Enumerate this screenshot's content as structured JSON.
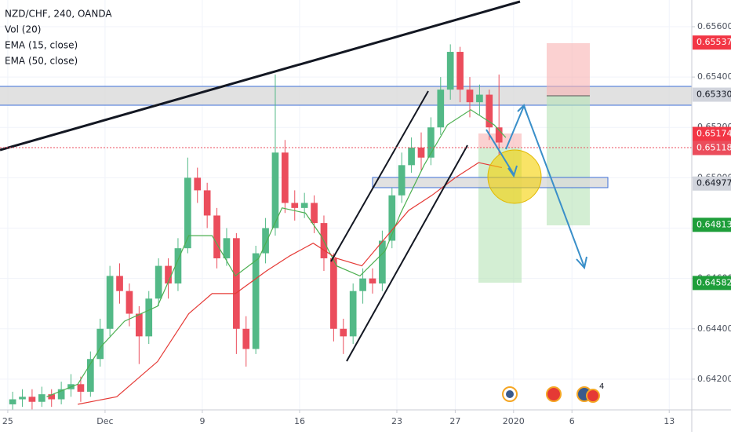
{
  "chart_data": {
    "type": "candlestick",
    "title": "NZD/CHF, 240, OANDA",
    "volume_label": "Vol (20)",
    "up_color": "#53b987",
    "down_color": "#eb4d5c",
    "xlim": [
      -0.4,
      35.16
    ],
    "ylim": [
      0.64078,
      0.65706
    ],
    "grid": true,
    "xticks": [
      {
        "value": 0,
        "label": "25"
      },
      {
        "value": 5,
        "label": "Dec"
      },
      {
        "value": 10,
        "label": "9"
      },
      {
        "value": 15,
        "label": "16"
      },
      {
        "value": 20,
        "label": "23"
      },
      {
        "value": 23,
        "label": "27"
      },
      {
        "value": 26,
        "label": "2020"
      },
      {
        "value": 29,
        "label": "6"
      },
      {
        "value": 34,
        "label": "13"
      }
    ],
    "yticks": [
      {
        "value": 0.642,
        "label": "0.64200"
      },
      {
        "value": 0.644,
        "label": "0.64400"
      },
      {
        "value": 0.646,
        "label": "0.64600"
      },
      {
        "value": 0.648,
        "label": "0.64800"
      },
      {
        "value": 0.65,
        "label": "0.65000"
      },
      {
        "value": 0.652,
        "label": "0.65200"
      },
      {
        "value": 0.654,
        "label": "0.65400"
      },
      {
        "value": 0.656,
        "label": "0.65600"
      }
    ],
    "x": [
      0.25,
      0.75,
      1.25,
      1.75,
      2.25,
      2.75,
      3.25,
      3.75,
      4.25,
      4.75,
      5.25,
      5.75,
      6.25,
      6.75,
      7.25,
      7.75,
      8.25,
      8.75,
      9.25,
      9.75,
      10.25,
      10.75,
      11.25,
      11.75,
      12.25,
      12.75,
      13.25,
      13.75,
      14.25,
      14.75,
      15.25,
      15.75,
      16.25,
      16.75,
      17.25,
      17.75,
      18.25,
      18.75,
      19.25,
      19.75,
      20.25,
      20.75,
      21.25,
      21.75,
      22.25,
      22.75,
      23.25,
      23.75,
      24.25,
      24.75,
      25.25
    ],
    "open": [
      0.641,
      0.6412,
      0.6413,
      0.6411,
      0.6414,
      0.6412,
      0.6416,
      0.6418,
      0.6415,
      0.6428,
      0.644,
      0.6461,
      0.6455,
      0.6446,
      0.6437,
      0.6452,
      0.6465,
      0.6458,
      0.6472,
      0.65,
      0.6495,
      0.6485,
      0.6468,
      0.6476,
      0.644,
      0.6432,
      0.647,
      0.648,
      0.651,
      0.649,
      0.6488,
      0.649,
      0.6482,
      0.6468,
      0.644,
      0.6437,
      0.6455,
      0.646,
      0.6458,
      0.6475,
      0.6493,
      0.6505,
      0.6512,
      0.6508,
      0.652,
      0.6535,
      0.655,
      0.6535,
      0.653,
      0.6533,
      0.652
    ],
    "high": [
      0.6415,
      0.6416,
      0.6416,
      0.6417,
      0.6416,
      0.6419,
      0.6422,
      0.6421,
      0.6431,
      0.6444,
      0.6465,
      0.6466,
      0.6458,
      0.6449,
      0.6455,
      0.6468,
      0.6468,
      0.6476,
      0.6508,
      0.6504,
      0.6498,
      0.6488,
      0.648,
      0.6478,
      0.6445,
      0.6473,
      0.6484,
      0.6541,
      0.6515,
      0.6495,
      0.6494,
      0.6493,
      0.6485,
      0.647,
      0.6444,
      0.6458,
      0.6464,
      0.6464,
      0.6479,
      0.6496,
      0.651,
      0.6516,
      0.6518,
      0.6524,
      0.654,
      0.6553,
      0.6552,
      0.654,
      0.6537,
      0.6535,
      0.6541
    ],
    "low": [
      0.6407,
      0.6409,
      0.6408,
      0.6409,
      0.6409,
      0.641,
      0.6413,
      0.6411,
      0.6413,
      0.6425,
      0.6437,
      0.645,
      0.6441,
      0.6426,
      0.6434,
      0.6449,
      0.6452,
      0.6455,
      0.647,
      0.649,
      0.648,
      0.6464,
      0.6465,
      0.643,
      0.6425,
      0.643,
      0.6466,
      0.6477,
      0.6486,
      0.6483,
      0.6484,
      0.6478,
      0.6463,
      0.6435,
      0.643,
      0.6434,
      0.645,
      0.6454,
      0.6455,
      0.6472,
      0.649,
      0.6502,
      0.6503,
      0.6505,
      0.6517,
      0.6531,
      0.653,
      0.6524,
      0.6525,
      0.6515,
      0.6509
    ],
    "close": [
      0.6412,
      0.6413,
      0.6411,
      0.6414,
      0.6412,
      0.6416,
      0.6418,
      0.6415,
      0.6428,
      0.644,
      0.6461,
      0.6455,
      0.6446,
      0.6437,
      0.6452,
      0.6465,
      0.6458,
      0.6472,
      0.65,
      0.6495,
      0.6485,
      0.6468,
      0.6476,
      0.644,
      0.6432,
      0.647,
      0.648,
      0.651,
      0.649,
      0.6488,
      0.649,
      0.6482,
      0.6468,
      0.644,
      0.6437,
      0.6455,
      0.646,
      0.6458,
      0.6475,
      0.6493,
      0.6505,
      0.6512,
      0.6508,
      0.652,
      0.6535,
      0.655,
      0.6535,
      0.653,
      0.6533,
      0.652,
      0.6514
    ],
    "series": [
      {
        "name": "EMA (15, close)",
        "color": "#4caf50",
        "x": [
          2.0,
          3.6,
          4.8,
          6.0,
          7.7,
          9.3,
          10.5,
          11.7,
          12.9,
          14.1,
          15.3,
          16.1,
          16.9,
          18.1,
          19.4,
          20.2,
          21.4,
          22.6,
          23.8,
          25.0,
          25.6
        ],
        "values": [
          0.6413,
          0.6418,
          0.6433,
          0.6443,
          0.6449,
          0.6477,
          0.6477,
          0.6461,
          0.6468,
          0.6488,
          0.6486,
          0.6477,
          0.6465,
          0.6461,
          0.6471,
          0.6486,
          0.6505,
          0.6521,
          0.6527,
          0.6521,
          0.6516
        ]
      },
      {
        "name": "EMA (50, close)",
        "color": "#e53935",
        "x": [
          3.6,
          5.6,
          7.7,
          9.3,
          10.5,
          11.7,
          13.3,
          14.5,
          15.7,
          16.9,
          18.2,
          19.4,
          20.6,
          21.8,
          23.0,
          24.2,
          25.4
        ],
        "values": [
          0.641,
          0.6413,
          0.6427,
          0.6446,
          0.6454,
          0.6454,
          0.6463,
          0.6469,
          0.6474,
          0.6468,
          0.6465,
          0.6476,
          0.6487,
          0.6493,
          0.65,
          0.6506,
          0.6504
        ]
      }
    ],
    "price_labels": [
      {
        "value": 0.65537,
        "label": "0.65537",
        "color": "#f23645",
        "text_color": "#ffffff"
      },
      {
        "value": 0.6533,
        "label": "0.65330",
        "color": "#d1d4dc",
        "text_color": "#131722"
      },
      {
        "value": 0.65174,
        "label": "0.65174",
        "color": "#f23645",
        "text_color": "#ffffff"
      },
      {
        "value": 0.65118,
        "label": "0.65118",
        "color": "#eb4d5c",
        "text_color": "#ffffff"
      },
      {
        "value": 0.64977,
        "label": "0.64977",
        "color": "#d1d4dc",
        "text_color": "#131722"
      },
      {
        "value": 0.64813,
        "label": "0.64813",
        "color": "#1e9e3a",
        "text_color": "#ffffff"
      },
      {
        "value": 0.64582,
        "label": "0.64582",
        "color": "#1e9e3a",
        "text_color": "#ffffff"
      }
    ],
    "events_badge": "4"
  }
}
